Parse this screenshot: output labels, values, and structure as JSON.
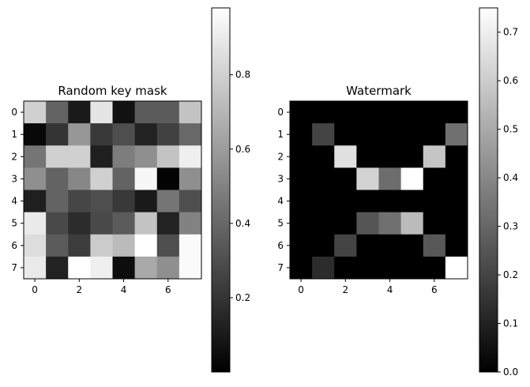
{
  "chart_data": [
    {
      "type": "heatmap",
      "title": "Random key mask",
      "xlabel": "",
      "ylabel": "",
      "colormap": "gray",
      "vmin": 0.0,
      "vmax": 0.98,
      "xticks": [
        0,
        2,
        4,
        6
      ],
      "yticks": [
        0,
        1,
        2,
        3,
        4,
        5,
        6,
        7
      ],
      "colorbar_ticks": [
        0.2,
        0.4,
        0.6,
        0.8
      ],
      "values": [
        [
          0.8,
          0.38,
          0.1,
          0.88,
          0.07,
          0.35,
          0.35,
          0.75
        ],
        [
          0.03,
          0.2,
          0.58,
          0.22,
          0.3,
          0.13,
          0.25,
          0.4
        ],
        [
          0.45,
          0.8,
          0.8,
          0.12,
          0.48,
          0.55,
          0.75,
          0.92
        ],
        [
          0.55,
          0.38,
          0.52,
          0.8,
          0.38,
          0.95,
          0.01,
          0.55
        ],
        [
          0.12,
          0.38,
          0.27,
          0.3,
          0.22,
          0.1,
          0.45,
          0.3
        ],
        [
          0.9,
          0.28,
          0.17,
          0.28,
          0.35,
          0.75,
          0.13,
          0.5
        ],
        [
          0.85,
          0.35,
          0.23,
          0.78,
          0.72,
          0.98,
          0.3,
          0.96
        ],
        [
          0.9,
          0.13,
          0.98,
          0.92,
          0.05,
          0.65,
          0.55,
          0.96
        ]
      ]
    },
    {
      "type": "heatmap",
      "title": "Watermark",
      "xlabel": "",
      "ylabel": "",
      "colormap": "gray",
      "vmin": 0.0,
      "vmax": 0.75,
      "xticks": [
        0,
        2,
        4,
        6
      ],
      "yticks": [
        0,
        1,
        2,
        3,
        4,
        5,
        6,
        7
      ],
      "colorbar_ticks": [
        0.0,
        0.1,
        0.2,
        0.3,
        0.4,
        0.5,
        0.6,
        0.7
      ],
      "values": [
        [
          0,
          0,
          0,
          0,
          0,
          0,
          0,
          0
        ],
        [
          0,
          0.2,
          0,
          0,
          0,
          0,
          0,
          0.33
        ],
        [
          0,
          0,
          0.66,
          0,
          0,
          0,
          0.58,
          0
        ],
        [
          0,
          0,
          0,
          0.62,
          0.32,
          0.75,
          0,
          0
        ],
        [
          0,
          0,
          0,
          0,
          0,
          0,
          0,
          0
        ],
        [
          0,
          0,
          0,
          0.25,
          0.33,
          0.55,
          0,
          0
        ],
        [
          0,
          0,
          0.2,
          0,
          0,
          0,
          0.26,
          0
        ],
        [
          0,
          0.13,
          0,
          0,
          0,
          0,
          0,
          0.75
        ]
      ]
    }
  ]
}
